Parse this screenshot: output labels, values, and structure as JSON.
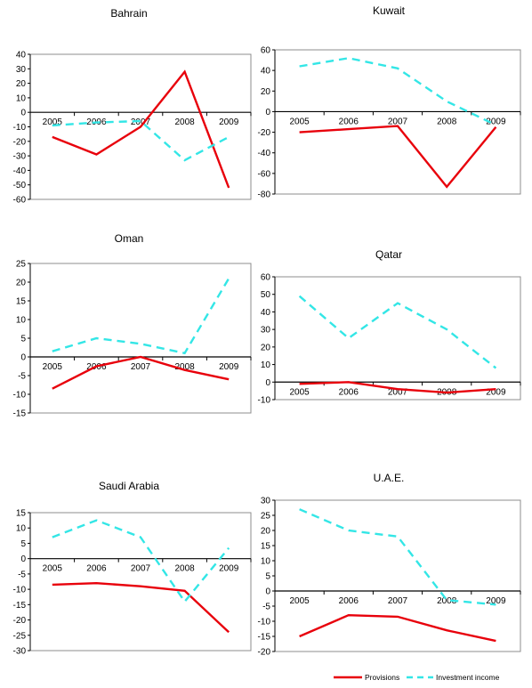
{
  "chart_data": [
    {
      "type": "line",
      "title": "Bahrain",
      "categories": [
        "2005",
        "2006",
        "2007",
        "2008",
        "2009"
      ],
      "ylim": [
        -60,
        40
      ],
      "yticks": [
        40,
        30,
        20,
        10,
        0,
        -10,
        -20,
        -30,
        -40,
        -50,
        -60
      ],
      "series": [
        {
          "name": "Provisions",
          "values": [
            -17,
            -29,
            -10,
            28,
            -52
          ]
        },
        {
          "name": "Investment income",
          "values": [
            -9,
            -7,
            -6,
            -33,
            -17
          ]
        }
      ]
    },
    {
      "type": "line",
      "title": "Kuwait",
      "categories": [
        "2005",
        "2006",
        "2007",
        "2008",
        "2009"
      ],
      "ylim": [
        -80,
        60
      ],
      "yticks": [
        60,
        40,
        20,
        0,
        -20,
        -40,
        -60,
        -80
      ],
      "series": [
        {
          "name": "Provisions",
          "values": [
            -20,
            -17,
            -14,
            -73,
            -15
          ]
        },
        {
          "name": "Investment income",
          "values": [
            44,
            52,
            42,
            10,
            -13
          ]
        }
      ]
    },
    {
      "type": "line",
      "title": "Oman",
      "categories": [
        "2005",
        "2006",
        "2007",
        "2008",
        "2009"
      ],
      "ylim": [
        -15,
        25
      ],
      "yticks": [
        25,
        20,
        15,
        10,
        5,
        0,
        -5,
        -10,
        -15
      ],
      "series": [
        {
          "name": "Provisions",
          "values": [
            -8.5,
            -2.5,
            0,
            -3.5,
            -6
          ]
        },
        {
          "name": "Investment income",
          "values": [
            1.5,
            5,
            3.5,
            1,
            21
          ]
        }
      ]
    },
    {
      "type": "line",
      "title": "Qatar",
      "categories": [
        "2005",
        "2006",
        "2007",
        "2008",
        "2009"
      ],
      "ylim": [
        -10,
        60
      ],
      "yticks": [
        60,
        50,
        40,
        30,
        20,
        10,
        0,
        -10
      ],
      "series": [
        {
          "name": "Provisions",
          "values": [
            -1,
            0,
            -4,
            -6,
            -4
          ]
        },
        {
          "name": "Investment income",
          "values": [
            49,
            25,
            45,
            30,
            8
          ]
        }
      ]
    },
    {
      "type": "line",
      "title": "Saudi Arabia",
      "categories": [
        "2005",
        "2006",
        "2007",
        "2008",
        "2009"
      ],
      "ylim": [
        -30,
        15
      ],
      "yticks": [
        15,
        10,
        5,
        0,
        -5,
        -10,
        -15,
        -20,
        -25,
        -30
      ],
      "series": [
        {
          "name": "Provisions",
          "values": [
            -8.5,
            -8,
            -9,
            -10.5,
            -24
          ]
        },
        {
          "name": "Investment income",
          "values": [
            7,
            12.5,
            7,
            -14,
            3.5
          ]
        }
      ]
    },
    {
      "type": "line",
      "title": "U.A.E.",
      "categories": [
        "2005",
        "2006",
        "2007",
        "2008",
        "2009"
      ],
      "ylim": [
        -20,
        30
      ],
      "yticks": [
        30,
        25,
        20,
        15,
        10,
        5,
        0,
        -5,
        -10,
        -15,
        -20
      ],
      "series": [
        {
          "name": "Provisions",
          "values": [
            -15,
            -8,
            -8.5,
            -13,
            -16.5
          ]
        },
        {
          "name": "Investment income",
          "values": [
            27,
            20,
            18,
            -3,
            -4.5
          ]
        }
      ]
    }
  ],
  "legend": {
    "placement": "bottom-right",
    "items": [
      {
        "label": "Provisions",
        "color": "#e8000b",
        "style": "solid"
      },
      {
        "label": "Investment income",
        "color": "#33e6e6",
        "style": "dashed"
      }
    ]
  },
  "colors": {
    "provisions": "#e8000b",
    "investment_income": "#33e6e6",
    "axis": "#000000",
    "frame": "#8c8c8c"
  }
}
